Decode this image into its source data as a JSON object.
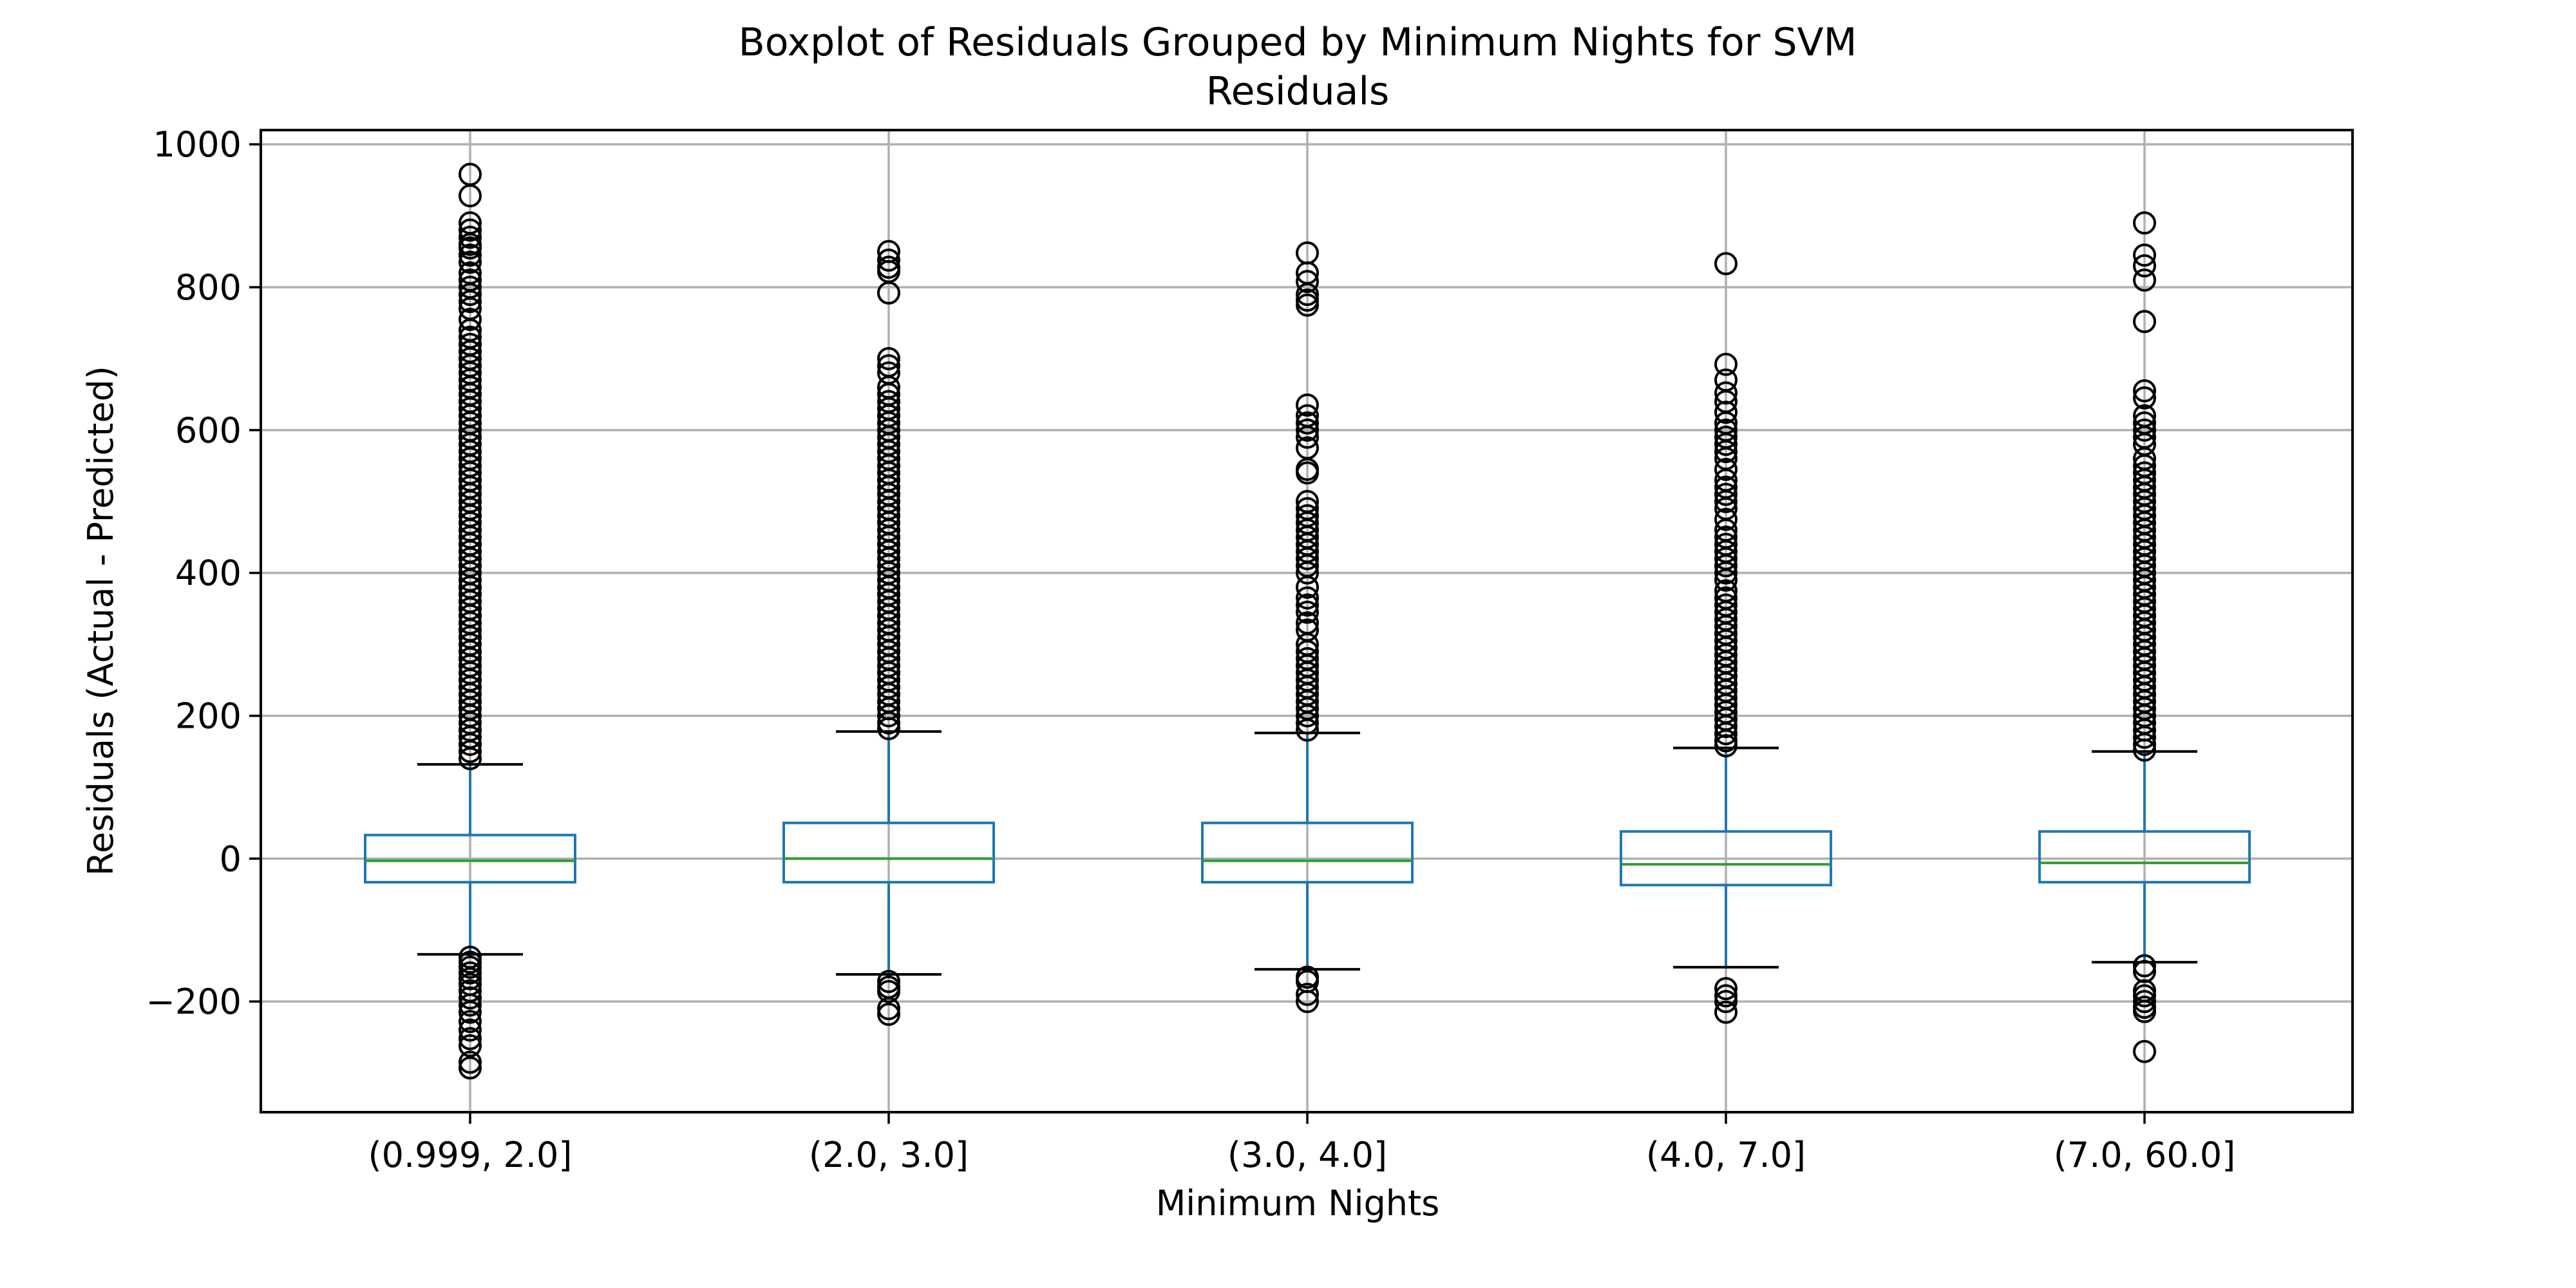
{
  "chart_data": {
    "type": "boxplot",
    "title_lines": [
      "Boxplot of Residuals Grouped by Minimum Nights for SVM",
      "Residuals"
    ],
    "xlabel": "Minimum Nights",
    "ylabel": "Residuals (Actual - Predicted)",
    "ylim": [
      -355,
      1020
    ],
    "yticks": [
      -200,
      0,
      200,
      400,
      600,
      800,
      1000
    ],
    "ytick_labels": [
      "−200",
      "0",
      "200",
      "400",
      "600",
      "800",
      "1000"
    ],
    "grid": true,
    "colors": {
      "box": "#1f77b4",
      "median": "#2ca02c",
      "cap": "#000000",
      "flier": "#000000",
      "grid": "#b0b0b0"
    },
    "categories": [
      "(0.999, 2.0]",
      "(2.0, 3.0]",
      "(3.0, 4.0]",
      "(4.0, 7.0]",
      "(7.0, 60.0]"
    ],
    "boxes": [
      {
        "q1": -33,
        "median": -3,
        "q3": 33,
        "whisker_low": -134,
        "whisker_high": 132,
        "fliers_high": [
          958,
          928,
          890,
          880,
          870,
          860,
          855,
          845,
          835,
          820,
          810,
          800,
          790,
          780,
          770,
          755,
          740,
          730,
          720,
          710,
          700,
          690,
          680,
          670,
          660,
          650,
          640,
          630,
          620,
          610,
          600,
          590,
          580,
          570,
          560,
          550,
          540,
          530,
          520,
          510,
          500,
          490,
          480,
          470,
          460,
          450,
          440,
          430,
          420,
          410,
          400,
          390,
          380,
          370,
          360,
          350,
          340,
          330,
          320,
          310,
          300,
          290,
          280,
          270,
          260,
          250,
          240,
          230,
          220,
          210,
          200,
          190,
          180,
          170,
          160,
          150,
          140
        ],
        "fliers_low": [
          -138,
          -145,
          -152,
          -160,
          -168,
          -176,
          -185,
          -195,
          -205,
          -215,
          -228,
          -240,
          -252,
          -262,
          -285,
          -293
        ]
      },
      {
        "q1": -33,
        "median": 0,
        "q3": 50,
        "whisker_low": -162,
        "whisker_high": 178,
        "fliers_high": [
          850,
          838,
          828,
          822,
          792,
          700,
          690,
          680,
          660,
          650,
          640,
          630,
          620,
          610,
          600,
          590,
          580,
          570,
          560,
          550,
          540,
          530,
          520,
          510,
          500,
          490,
          480,
          470,
          460,
          450,
          440,
          430,
          420,
          410,
          400,
          390,
          380,
          370,
          360,
          350,
          340,
          330,
          320,
          310,
          300,
          290,
          280,
          270,
          260,
          250,
          240,
          230,
          220,
          210,
          200,
          190,
          182
        ],
        "fliers_low": [
          -172,
          -180,
          -186,
          -210,
          -218
        ]
      },
      {
        "q1": -33,
        "median": -3,
        "q3": 50,
        "whisker_low": -155,
        "whisker_high": 176,
        "fliers_high": [
          848,
          820,
          808,
          790,
          782,
          775,
          635,
          620,
          610,
          600,
          590,
          575,
          545,
          540,
          500,
          490,
          480,
          470,
          460,
          450,
          440,
          430,
          420,
          410,
          400,
          380,
          365,
          355,
          345,
          330,
          320,
          300,
          290,
          280,
          270,
          260,
          250,
          240,
          230,
          220,
          210,
          200,
          190,
          180
        ],
        "fliers_low": [
          -166,
          -172,
          -190,
          -200
        ]
      },
      {
        "q1": -37,
        "median": -8,
        "q3": 38,
        "whisker_low": -152,
        "whisker_high": 155,
        "fliers_high": [
          833,
          692,
          670,
          652,
          640,
          625,
          610,
          600,
          590,
          580,
          570,
          560,
          545,
          530,
          520,
          510,
          500,
          490,
          475,
          460,
          450,
          440,
          430,
          420,
          410,
          400,
          390,
          375,
          365,
          355,
          345,
          335,
          325,
          315,
          305,
          295,
          285,
          275,
          265,
          255,
          245,
          235,
          225,
          215,
          205,
          195,
          185,
          175,
          165,
          158
        ],
        "fliers_low": [
          -182,
          -192,
          -200,
          -215
        ]
      },
      {
        "q1": -33,
        "median": -6,
        "q3": 38,
        "whisker_low": -145,
        "whisker_high": 150,
        "fliers_high": [
          890,
          845,
          830,
          810,
          752,
          655,
          645,
          620,
          610,
          600,
          590,
          580,
          560,
          550,
          540,
          530,
          520,
          510,
          500,
          490,
          480,
          470,
          460,
          450,
          440,
          430,
          420,
          410,
          400,
          390,
          380,
          370,
          360,
          350,
          340,
          330,
          320,
          310,
          300,
          290,
          280,
          270,
          260,
          250,
          240,
          230,
          220,
          210,
          200,
          190,
          180,
          170,
          160,
          152
        ],
        "fliers_low": [
          -150,
          -158,
          -185,
          -192,
          -200,
          -208,
          -214,
          -270
        ]
      }
    ]
  }
}
